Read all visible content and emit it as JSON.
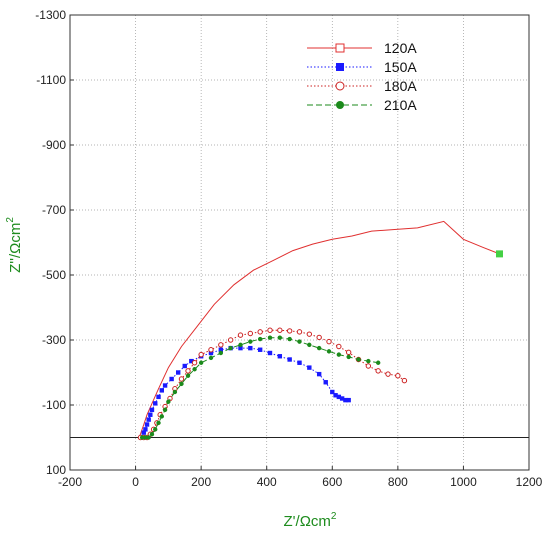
{
  "chart_data": {
    "type": "scatter",
    "title": "",
    "xlabel": "Z'/Ωcm",
    "xlabel_sup": "2",
    "ylabel": "Z''/Ωcm",
    "ylabel_sup": "2",
    "xlim": [
      -200,
      1200
    ],
    "ylim_plot_units": [
      -1300,
      100
    ],
    "y_axis_inverted": true,
    "x_ticks": [
      "-200",
      "0",
      "200",
      "400",
      "600",
      "800",
      "1000",
      "1200"
    ],
    "x_tick_values": [
      -200,
      0,
      200,
      400,
      600,
      800,
      1000,
      1200
    ],
    "y_ticks": [
      "-1300",
      "-1100",
      "-900",
      "-700",
      "-500",
      "-300",
      "-100",
      "100"
    ],
    "y_tick_values": [
      -1300,
      -1100,
      -900,
      -700,
      -500,
      -300,
      -100,
      100
    ],
    "grid": true,
    "grid_style": "dotted",
    "zero_line": true,
    "legend_position": "top-right",
    "series": [
      {
        "name": "120A",
        "color": "#e03030",
        "line_style": "solid",
        "marker": "open-square",
        "end_marker_color": "#44d044",
        "x": [
          10,
          14,
          18,
          25,
          35,
          50,
          70,
          100,
          140,
          190,
          240,
          300,
          360,
          420,
          480,
          540,
          600,
          660,
          720,
          790,
          860,
          940,
          1000,
          1060,
          1110
        ],
        "y": [
          0,
          -8,
          -20,
          -40,
          -70,
          -105,
          -150,
          -215,
          -280,
          -345,
          -410,
          -470,
          -515,
          -545,
          -575,
          -595,
          -610,
          -620,
          -635,
          -640,
          -645,
          -665,
          -610,
          -585,
          -565
        ]
      },
      {
        "name": "150A",
        "color": "#1a1aff",
        "line_style": "dotted",
        "marker": "filled-square",
        "x": [
          20,
          25,
          30,
          35,
          40,
          45,
          50,
          60,
          70,
          80,
          90,
          110,
          130,
          150,
          170,
          200,
          230,
          260,
          290,
          320,
          350,
          380,
          410,
          440,
          470,
          500,
          530,
          560,
          580,
          600,
          610,
          620,
          630,
          640,
          650
        ],
        "y": [
          0,
          -15,
          -25,
          -40,
          -55,
          -70,
          -85,
          -105,
          -125,
          -145,
          -160,
          -180,
          -200,
          -220,
          -235,
          -250,
          -260,
          -270,
          -275,
          -275,
          -275,
          -270,
          -260,
          -250,
          -240,
          -230,
          -215,
          -195,
          -170,
          -140,
          -130,
          -125,
          -120,
          -115,
          -115
        ]
      },
      {
        "name": "180A",
        "color": "#cc2222",
        "line_style": "dotted",
        "marker": "open-circle",
        "x": [
          15,
          25,
          35,
          45,
          55,
          65,
          75,
          90,
          105,
          120,
          140,
          160,
          180,
          200,
          230,
          260,
          290,
          320,
          350,
          380,
          410,
          440,
          470,
          500,
          530,
          560,
          590,
          620,
          650,
          680,
          710,
          740,
          770,
          800,
          820
        ],
        "y": [
          0,
          0,
          0,
          -10,
          -25,
          -45,
          -70,
          -95,
          -120,
          -150,
          -180,
          -205,
          -230,
          -255,
          -270,
          -285,
          -300,
          -315,
          -320,
          -325,
          -330,
          -330,
          -328,
          -325,
          -318,
          -308,
          -295,
          -280,
          -262,
          -240,
          -220,
          -205,
          -195,
          -190,
          -175
        ]
      },
      {
        "name": "210A",
        "color": "#1b8a1b",
        "line_style": "dashed",
        "marker": "filled-circle",
        "x": [
          20,
          30,
          40,
          50,
          60,
          70,
          80,
          90,
          100,
          120,
          140,
          160,
          180,
          200,
          230,
          260,
          290,
          320,
          350,
          380,
          410,
          440,
          470,
          500,
          530,
          560,
          590,
          620,
          650,
          680,
          710,
          740
        ],
        "y": [
          0,
          0,
          0,
          -10,
          -25,
          -45,
          -65,
          -85,
          -110,
          -140,
          -165,
          -190,
          -210,
          -230,
          -245,
          -260,
          -275,
          -285,
          -295,
          -303,
          -307,
          -307,
          -303,
          -295,
          -285,
          -275,
          -265,
          -255,
          -248,
          -240,
          -235,
          -230
        ]
      }
    ]
  }
}
